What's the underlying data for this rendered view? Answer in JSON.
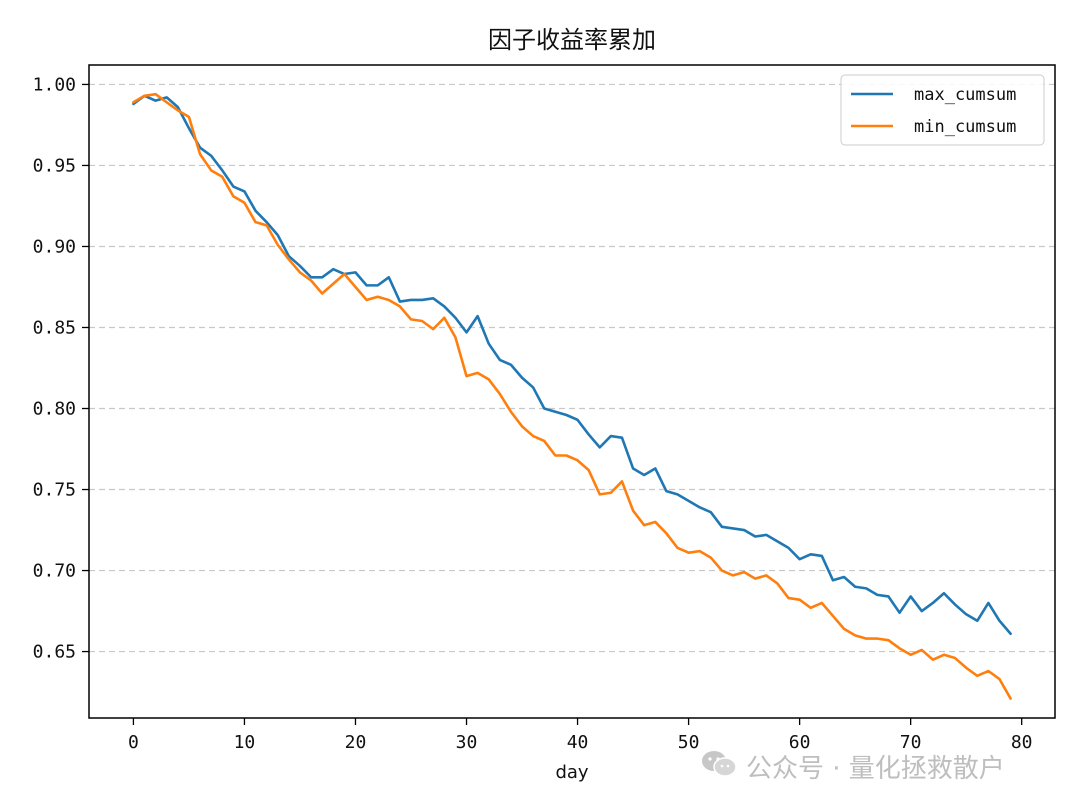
{
  "chart_data": {
    "type": "line",
    "title": "因子收益率累加",
    "xlabel": "day",
    "ylabel": "",
    "xlim": [
      -4,
      83
    ],
    "ylim": [
      0.609,
      1.012
    ],
    "xticks": [
      0,
      10,
      20,
      30,
      40,
      50,
      60,
      70,
      80
    ],
    "yticks": [
      0.65,
      0.7,
      0.75,
      0.8,
      0.85,
      0.9,
      0.95,
      1.0
    ],
    "ytick_labels": [
      "0.65",
      "0.70",
      "0.75",
      "0.80",
      "0.85",
      "0.90",
      "0.95",
      "1.00"
    ],
    "grid": "y-dashed",
    "legend_position": "top-right",
    "series": [
      {
        "name": "max_cumsum",
        "color": "#1f77b4",
        "values": [
          0.988,
          0.993,
          0.99,
          0.992,
          0.986,
          0.973,
          0.961,
          0.956,
          0.947,
          0.937,
          0.934,
          0.922,
          0.915,
          0.907,
          0.894,
          0.888,
          0.881,
          0.881,
          0.886,
          0.883,
          0.884,
          0.876,
          0.876,
          0.881,
          0.866,
          0.867,
          0.867,
          0.868,
          0.863,
          0.856,
          0.847,
          0.857,
          0.84,
          0.83,
          0.827,
          0.819,
          0.813,
          0.8,
          0.798,
          0.796,
          0.793,
          0.784,
          0.776,
          0.783,
          0.782,
          0.763,
          0.759,
          0.763,
          0.749,
          0.747,
          0.743,
          0.739,
          0.736,
          0.727,
          0.726,
          0.725,
          0.721,
          0.722,
          0.718,
          0.714,
          0.707,
          0.71,
          0.709,
          0.694,
          0.696,
          0.69,
          0.689,
          0.685,
          0.684,
          0.674,
          0.684,
          0.675,
          0.68,
          0.686,
          0.679,
          0.673,
          0.669,
          0.68,
          0.669,
          0.661
        ]
      },
      {
        "name": "min_cumsum",
        "color": "#ff7f0e",
        "values": [
          0.989,
          0.993,
          0.994,
          0.989,
          0.984,
          0.98,
          0.957,
          0.947,
          0.943,
          0.931,
          0.927,
          0.915,
          0.913,
          0.901,
          0.892,
          0.884,
          0.879,
          0.871,
          0.877,
          0.883,
          0.875,
          0.867,
          0.869,
          0.867,
          0.863,
          0.855,
          0.854,
          0.849,
          0.856,
          0.844,
          0.82,
          0.822,
          0.818,
          0.809,
          0.798,
          0.789,
          0.783,
          0.78,
          0.771,
          0.771,
          0.768,
          0.762,
          0.747,
          0.748,
          0.755,
          0.737,
          0.728,
          0.73,
          0.723,
          0.714,
          0.711,
          0.712,
          0.708,
          0.7,
          0.697,
          0.699,
          0.695,
          0.697,
          0.692,
          0.683,
          0.682,
          0.677,
          0.68,
          0.672,
          0.664,
          0.66,
          0.658,
          0.658,
          0.657,
          0.652,
          0.648,
          0.651,
          0.645,
          0.648,
          0.646,
          0.64,
          0.635,
          0.638,
          0.633,
          0.621
        ]
      }
    ]
  },
  "watermark": {
    "icon": "wechat-icon",
    "text": "公众号 · 量化拯救散户"
  }
}
